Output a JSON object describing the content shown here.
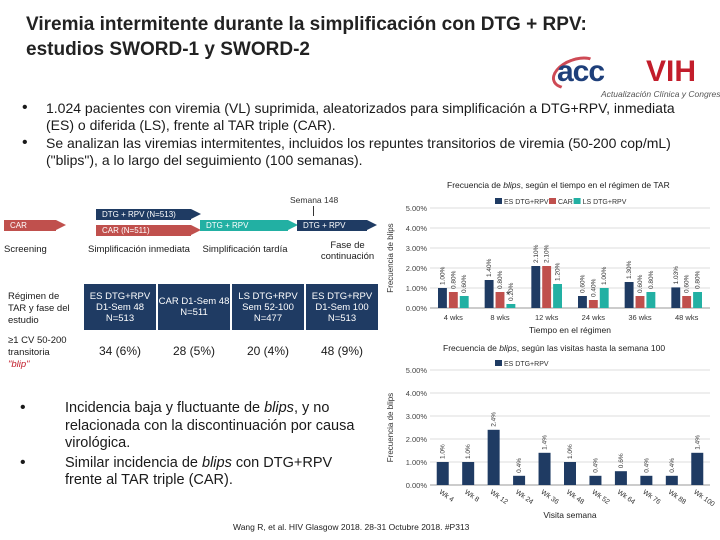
{
  "title": {
    "line1": "Viremia intermitente durante la simplificación con DTG + RPV:",
    "line2": "estudios SWORD-1 y SWORD-2"
  },
  "logo": {
    "acc": "acc",
    "vih": "VIH",
    "subtitle": "Actualización Clínica y Congresos"
  },
  "bullets_top": [
    "1.024 pacientes con viremia (VL) suprimida, aleatorizados para simplificación a DTG+RPV, inmediata (ES) o diferida (LS), frente al TAR triple (CAR).",
    "Se analizan las viremias intermitentes, incluidos los repuntes transitorios de viremia (50-200 cop/mL) (\"blips\"), a lo largo del seguimiento (100 semanas)."
  ],
  "bullets_bottom": [
    {
      "pre": "Incidencia baja y fluctuante de ",
      "em": "blips",
      "post": ", y no relacionada con la discontinuación por causa virológica."
    },
    {
      "pre": "Similar incidencia de ",
      "em": "blips",
      "post": " con DTG+RPV frente al TAR triple (CAR)."
    }
  ],
  "timeline": {
    "week148": "Semana 148",
    "bars": {
      "car": "CAR",
      "dtg_rpv_513": "DTG + RPV (N=513)",
      "car_511": "CAR (N=511)",
      "dtg_rpv_a": "DTG + RPV",
      "dtg_rpv_b": "DTG + RPV"
    },
    "phases": [
      "Screening",
      "Simplificación inmediata",
      "Simplificación tardía",
      "Fase de continuación"
    ],
    "row_label_regimen": "Régimen de TAR y fase del estudio",
    "regimens": [
      "ES DTG+RPV D1-Sem 48 N=513",
      "CAR D1-Sem 48 N=511",
      "LS DTG+RPV Sem 52-100 N=477",
      "ES DTG+RPV D1-Sem 100 N=513"
    ],
    "row_label_blip": "≥1 CV 50-200 transitoria",
    "row_label_blip_em": "\"blip\"",
    "blip_values": [
      "34 (6%)",
      "28 (5%)",
      "20 (4%)",
      "48 (9%)"
    ]
  },
  "chart_data": [
    {
      "type": "bar",
      "title": "Frecuencia de blips, según el tiempo en el régimen de TAR",
      "title_pre": "Frecuencia de ",
      "title_em": "blips",
      "title_post": ", según el tiempo en el régimen de TAR",
      "xlabel": "Tiempo en el régimen",
      "ylabel": "Frecuencia de blips",
      "ylim": [
        0,
        5
      ],
      "yticks": [
        "0.00%",
        "1.00%",
        "2.00%",
        "3.00%",
        "4.00%",
        "5.00%"
      ],
      "categories": [
        "4 wks",
        "8 wks",
        "12 wks",
        "24 wks",
        "36 wks",
        "48 wks"
      ],
      "series": [
        {
          "name": "ES DTG+RPV",
          "color": "#1f3b63",
          "values": [
            1.0,
            1.4,
            2.1,
            0.6,
            1.3,
            1.03
          ],
          "labels": [
            "1.00%",
            "1.40%",
            "2.10%",
            "0.60%",
            "1.30%",
            "1.03%"
          ]
        },
        {
          "name": "CAR",
          "color": "#c0504d",
          "values": [
            0.8,
            0.8,
            2.1,
            0.4,
            0.6,
            0.6
          ],
          "labels": [
            "0.80%",
            "0.80%",
            "2.10%",
            "0.40%",
            "0.60%",
            "0.60%"
          ]
        },
        {
          "name": "LS DTG+RPV",
          "color": "#22b0a3",
          "values": [
            0.6,
            0.2,
            1.2,
            1.0,
            0.8,
            0.8
          ],
          "labels": [
            "0.60%",
            "0.20%",
            "1.20%",
            "1.00%",
            "0.80%",
            "0.80%"
          ]
        }
      ],
      "annotation": "*"
    },
    {
      "type": "bar",
      "title": "Frecuencia de blips, según las visitas hasta la semana 100",
      "title_pre": "Frecuencia de ",
      "title_em": "blips",
      "title_post": ", según las visitas hasta la semana 100",
      "xlabel": "Visita semana",
      "ylabel": "Frecuencia de blips",
      "ylim": [
        0,
        5
      ],
      "yticks": [
        "0.00%",
        "1.00%",
        "2.00%",
        "3.00%",
        "4.00%",
        "5.00%"
      ],
      "categories": [
        "Wk 4",
        "Wk 8",
        "Wk 12",
        "Wk 24",
        "Wk 36",
        "Wk 48",
        "Wk 52",
        "Wk 64",
        "Wk 76",
        "Wk 88",
        "Wk 100"
      ],
      "series": [
        {
          "name": "ES DTG+RPV",
          "color": "#1f3b63",
          "values": [
            1.0,
            1.0,
            2.4,
            0.4,
            1.4,
            1.0,
            0.4,
            0.6,
            0.4,
            0.4,
            1.4
          ],
          "labels": [
            "1.0%",
            "1.0%",
            "2.4%",
            "0.4%",
            "1.4%",
            "1.0%",
            "0.4%",
            "0.6%",
            "0.4%",
            "0.4%",
            "1.4%"
          ]
        }
      ]
    }
  ],
  "footnote": "Wang R, et al. HIV Glasgow 2018. 28-31 Octubre 2018. #P313"
}
